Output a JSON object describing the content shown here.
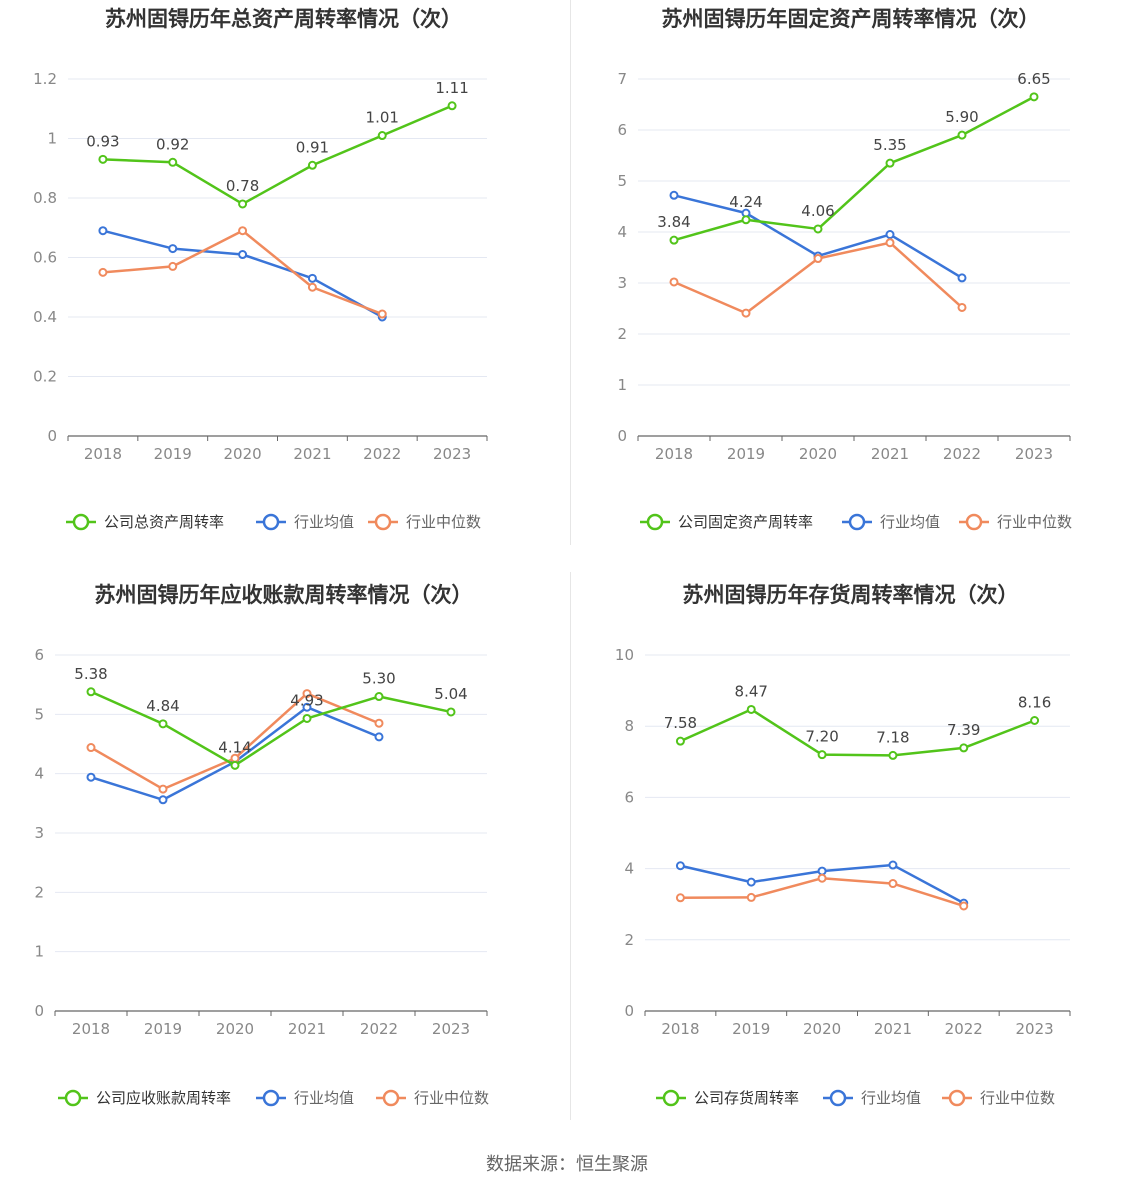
{
  "source_label": "数据来源：恒生聚源",
  "colors": {
    "company": "#52c41a",
    "avg": "#3a75d8",
    "median": "#f08a5d",
    "grid": "#e4e8f2",
    "axis": "#666666",
    "title": "#333333",
    "label": "#444444",
    "tick": "#888888"
  },
  "chart_data": [
    {
      "type": "line",
      "title": "苏州固锝历年总资产周转率情况（次）",
      "categories": [
        "2018",
        "2019",
        "2020",
        "2021",
        "2022",
        "2023"
      ],
      "ylim": [
        0,
        1.2
      ],
      "yticks": [
        "0",
        "0.2",
        "0.4",
        "0.6",
        "0.8",
        "1",
        "1.2"
      ],
      "grid": true,
      "legend_position": "bottom",
      "series": [
        {
          "name": "公司总资产周转率",
          "role": "company",
          "values": [
            0.93,
            0.92,
            0.78,
            0.91,
            1.01,
            1.11
          ],
          "labels": [
            "0.93",
            "0.92",
            "0.78",
            "0.91",
            "1.01",
            "1.11"
          ]
        },
        {
          "name": "行业均值",
          "role": "avg",
          "values": [
            0.69,
            0.63,
            0.61,
            0.53,
            0.4,
            null
          ]
        },
        {
          "name": "行业中位数",
          "role": "median",
          "values": [
            0.55,
            0.57,
            0.69,
            0.5,
            0.41,
            null
          ]
        }
      ]
    },
    {
      "type": "line",
      "title": "苏州固锝历年固定资产周转率情况（次）",
      "categories": [
        "2018",
        "2019",
        "2020",
        "2021",
        "2022",
        "2023"
      ],
      "ylim": [
        0,
        7
      ],
      "yticks": [
        "0",
        "1",
        "2",
        "3",
        "4",
        "5",
        "6",
        "7"
      ],
      "grid": true,
      "legend_position": "bottom",
      "series": [
        {
          "name": "公司固定资产周转率",
          "role": "company",
          "values": [
            3.84,
            4.24,
            4.06,
            5.35,
            5.9,
            6.65
          ],
          "labels": [
            "3.84",
            "4.24",
            "4.06",
            "5.35",
            "5.90",
            "6.65"
          ]
        },
        {
          "name": "行业均值",
          "role": "avg",
          "values": [
            4.72,
            4.37,
            3.53,
            3.95,
            3.1,
            null
          ]
        },
        {
          "name": "行业中位数",
          "role": "median",
          "values": [
            3.02,
            2.41,
            3.48,
            3.79,
            2.52,
            null
          ]
        }
      ]
    },
    {
      "type": "line",
      "title": "苏州固锝历年应收账款周转率情况（次）",
      "categories": [
        "2018",
        "2019",
        "2020",
        "2021",
        "2022",
        "2023"
      ],
      "ylim": [
        0,
        6
      ],
      "yticks": [
        "0",
        "1",
        "2",
        "3",
        "4",
        "5",
        "6"
      ],
      "grid": true,
      "legend_position": "bottom",
      "series": [
        {
          "name": "公司应收账款周转率",
          "role": "company",
          "values": [
            5.38,
            4.84,
            4.14,
            4.93,
            5.3,
            5.04
          ],
          "labels": [
            "5.38",
            "4.84",
            "4.14",
            "4.93",
            "5.30",
            "5.04"
          ]
        },
        {
          "name": "行业均值",
          "role": "avg",
          "values": [
            3.94,
            3.56,
            4.2,
            5.12,
            4.62,
            null
          ]
        },
        {
          "name": "行业中位数",
          "role": "median",
          "values": [
            4.44,
            3.74,
            4.26,
            5.35,
            4.85,
            null
          ]
        }
      ]
    },
    {
      "type": "line",
      "title": "苏州固锝历年存货周转率情况（次）",
      "categories": [
        "2018",
        "2019",
        "2020",
        "2021",
        "2022",
        "2023"
      ],
      "ylim": [
        0,
        10
      ],
      "yticks": [
        "0",
        "2",
        "4",
        "6",
        "8",
        "10"
      ],
      "grid": true,
      "legend_position": "bottom",
      "series": [
        {
          "name": "公司存货周转率",
          "role": "company",
          "values": [
            7.58,
            8.47,
            7.2,
            7.18,
            7.39,
            8.16
          ],
          "labels": [
            "7.58",
            "8.47",
            "7.20",
            "7.18",
            "7.39",
            "8.16"
          ]
        },
        {
          "name": "行业均值",
          "role": "avg",
          "values": [
            4.08,
            3.62,
            3.93,
            4.1,
            3.03,
            null
          ]
        },
        {
          "name": "行业中位数",
          "role": "median",
          "values": [
            3.18,
            3.19,
            3.73,
            3.58,
            2.95,
            null
          ]
        }
      ]
    }
  ]
}
